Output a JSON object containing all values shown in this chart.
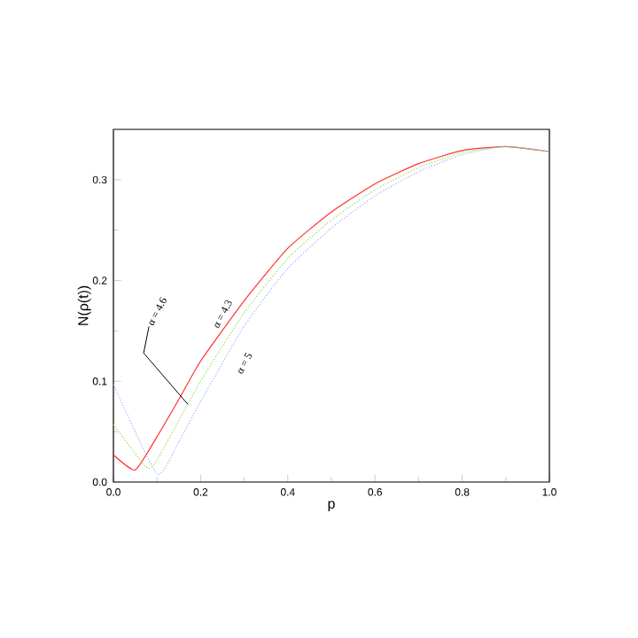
{
  "chart_data": {
    "type": "line",
    "xlabel": "p",
    "ylabel": "N(ρ(t))",
    "xlim": [
      0,
      1
    ],
    "ylim": [
      0,
      0.35
    ],
    "xticks": [
      {
        "value": 0,
        "label": "0.0"
      },
      0.2,
      0.4,
      0.6,
      0.8,
      {
        "value": 1,
        "label": "1.0"
      }
    ],
    "yticks": [
      {
        "value": 0,
        "label": "0.0"
      },
      0.1,
      0.2,
      0.3
    ],
    "series": [
      {
        "color": "#ff3030",
        "line_style": "solid",
        "x": [
          0,
          0.05,
          0.1,
          0.15,
          0.2,
          0.3,
          0.4,
          0.5,
          0.6,
          0.7,
          0.8,
          0.9,
          1.0
        ],
        "values": [
          0.027,
          0.012,
          0.045,
          0.082,
          0.12,
          0.18,
          0.232,
          0.268,
          0.296,
          0.316,
          0.329,
          0.333,
          0.328
        ]
      },
      {
        "color": "#80e040",
        "line_style": "dotted",
        "x": [
          0,
          0.075,
          0.1,
          0.2,
          0.3,
          0.4,
          0.5,
          0.6,
          0.7,
          0.8,
          0.9,
          1.0
        ],
        "values": [
          0.057,
          0.015,
          0.022,
          0.1,
          0.168,
          0.222,
          0.26,
          0.29,
          0.312,
          0.327,
          0.333,
          0.328
        ]
      },
      {
        "color": "#a0a8ff",
        "line_style": "dotted",
        "x": [
          0,
          0.1,
          0.15,
          0.2,
          0.3,
          0.4,
          0.5,
          0.6,
          0.7,
          0.8,
          0.9,
          1.0
        ],
        "values": [
          0.097,
          0.008,
          0.04,
          0.08,
          0.155,
          0.212,
          0.252,
          0.284,
          0.308,
          0.325,
          0.333,
          0.328
        ]
      }
    ],
    "annotations": [
      "α = 4.3",
      {
        "text": "α = 4.6",
        "x": 0.171,
        "y": 0.077
      },
      "α = 5"
    ]
  }
}
